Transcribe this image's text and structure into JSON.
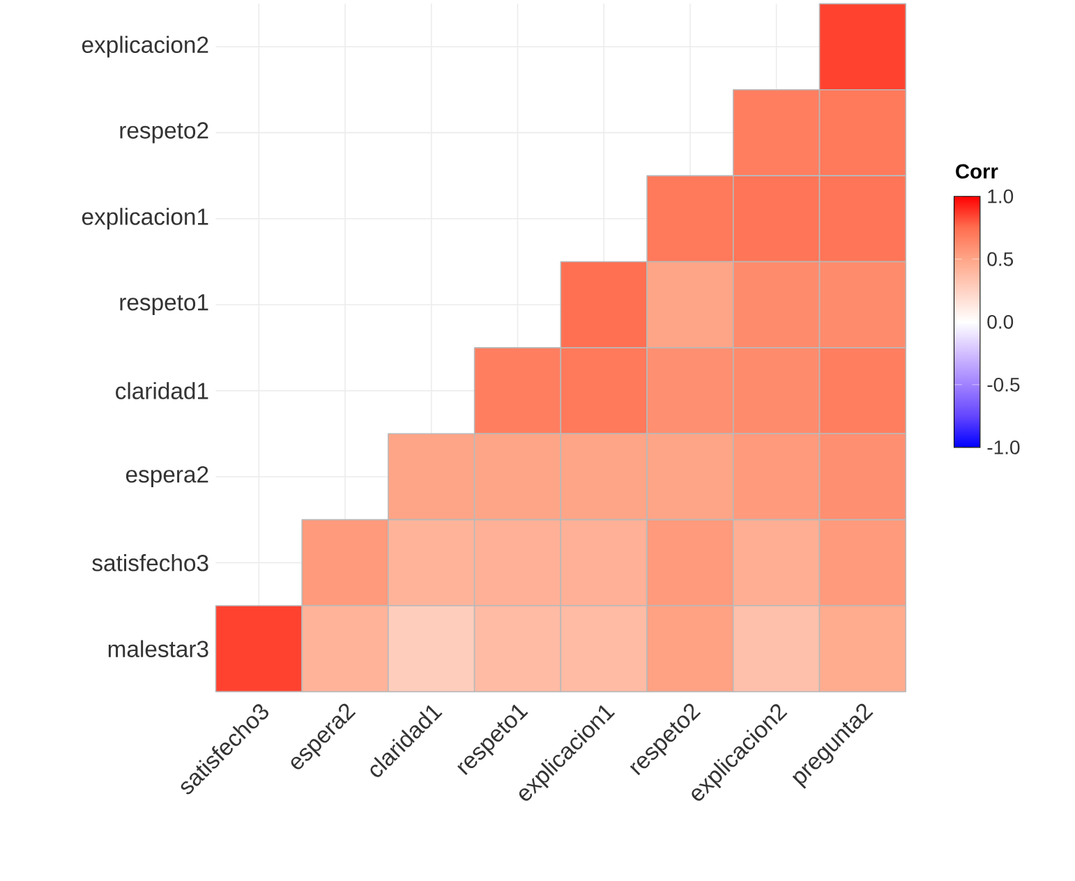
{
  "chart_data": {
    "type": "heatmap",
    "clabel": "Corr",
    "grid": true,
    "categories": [
      "satisfecho3",
      "espera2",
      "claridad1",
      "respeto1",
      "explicacion1",
      "respeto2",
      "explicacion2",
      "pregunta2"
    ],
    "y_categories": [
      "explicacion2",
      "respeto2",
      "explicacion1",
      "respeto1",
      "claridad1",
      "espera2",
      "satisfecho3",
      "malestar3"
    ],
    "cells": [
      [
        null,
        null,
        null,
        null,
        null,
        null,
        null,
        0.85
      ],
      [
        null,
        null,
        null,
        null,
        null,
        null,
        0.68,
        0.7
      ],
      [
        null,
        null,
        null,
        null,
        null,
        0.7,
        0.72,
        0.72
      ],
      [
        null,
        null,
        null,
        null,
        0.74,
        0.5,
        0.62,
        0.62
      ],
      [
        null,
        null,
        null,
        0.68,
        0.7,
        0.6,
        0.62,
        0.68
      ],
      [
        null,
        null,
        0.5,
        0.5,
        0.5,
        0.5,
        0.55,
        0.6
      ],
      [
        null,
        0.55,
        0.42,
        0.44,
        0.44,
        0.55,
        0.45,
        0.55
      ],
      [
        0.85,
        0.42,
        0.28,
        0.38,
        0.38,
        0.52,
        0.35,
        0.47
      ]
    ],
    "clim": [
      -1,
      1
    ],
    "cticks": [
      {
        "value": 1,
        "label": "1.0"
      },
      {
        "value": 0.5,
        "label": "0.5"
      },
      {
        "value": 0,
        "label": "0.0"
      },
      {
        "value": -0.5,
        "label": "-0.5"
      },
      {
        "value": -1,
        "label": "-1.0"
      }
    ]
  }
}
